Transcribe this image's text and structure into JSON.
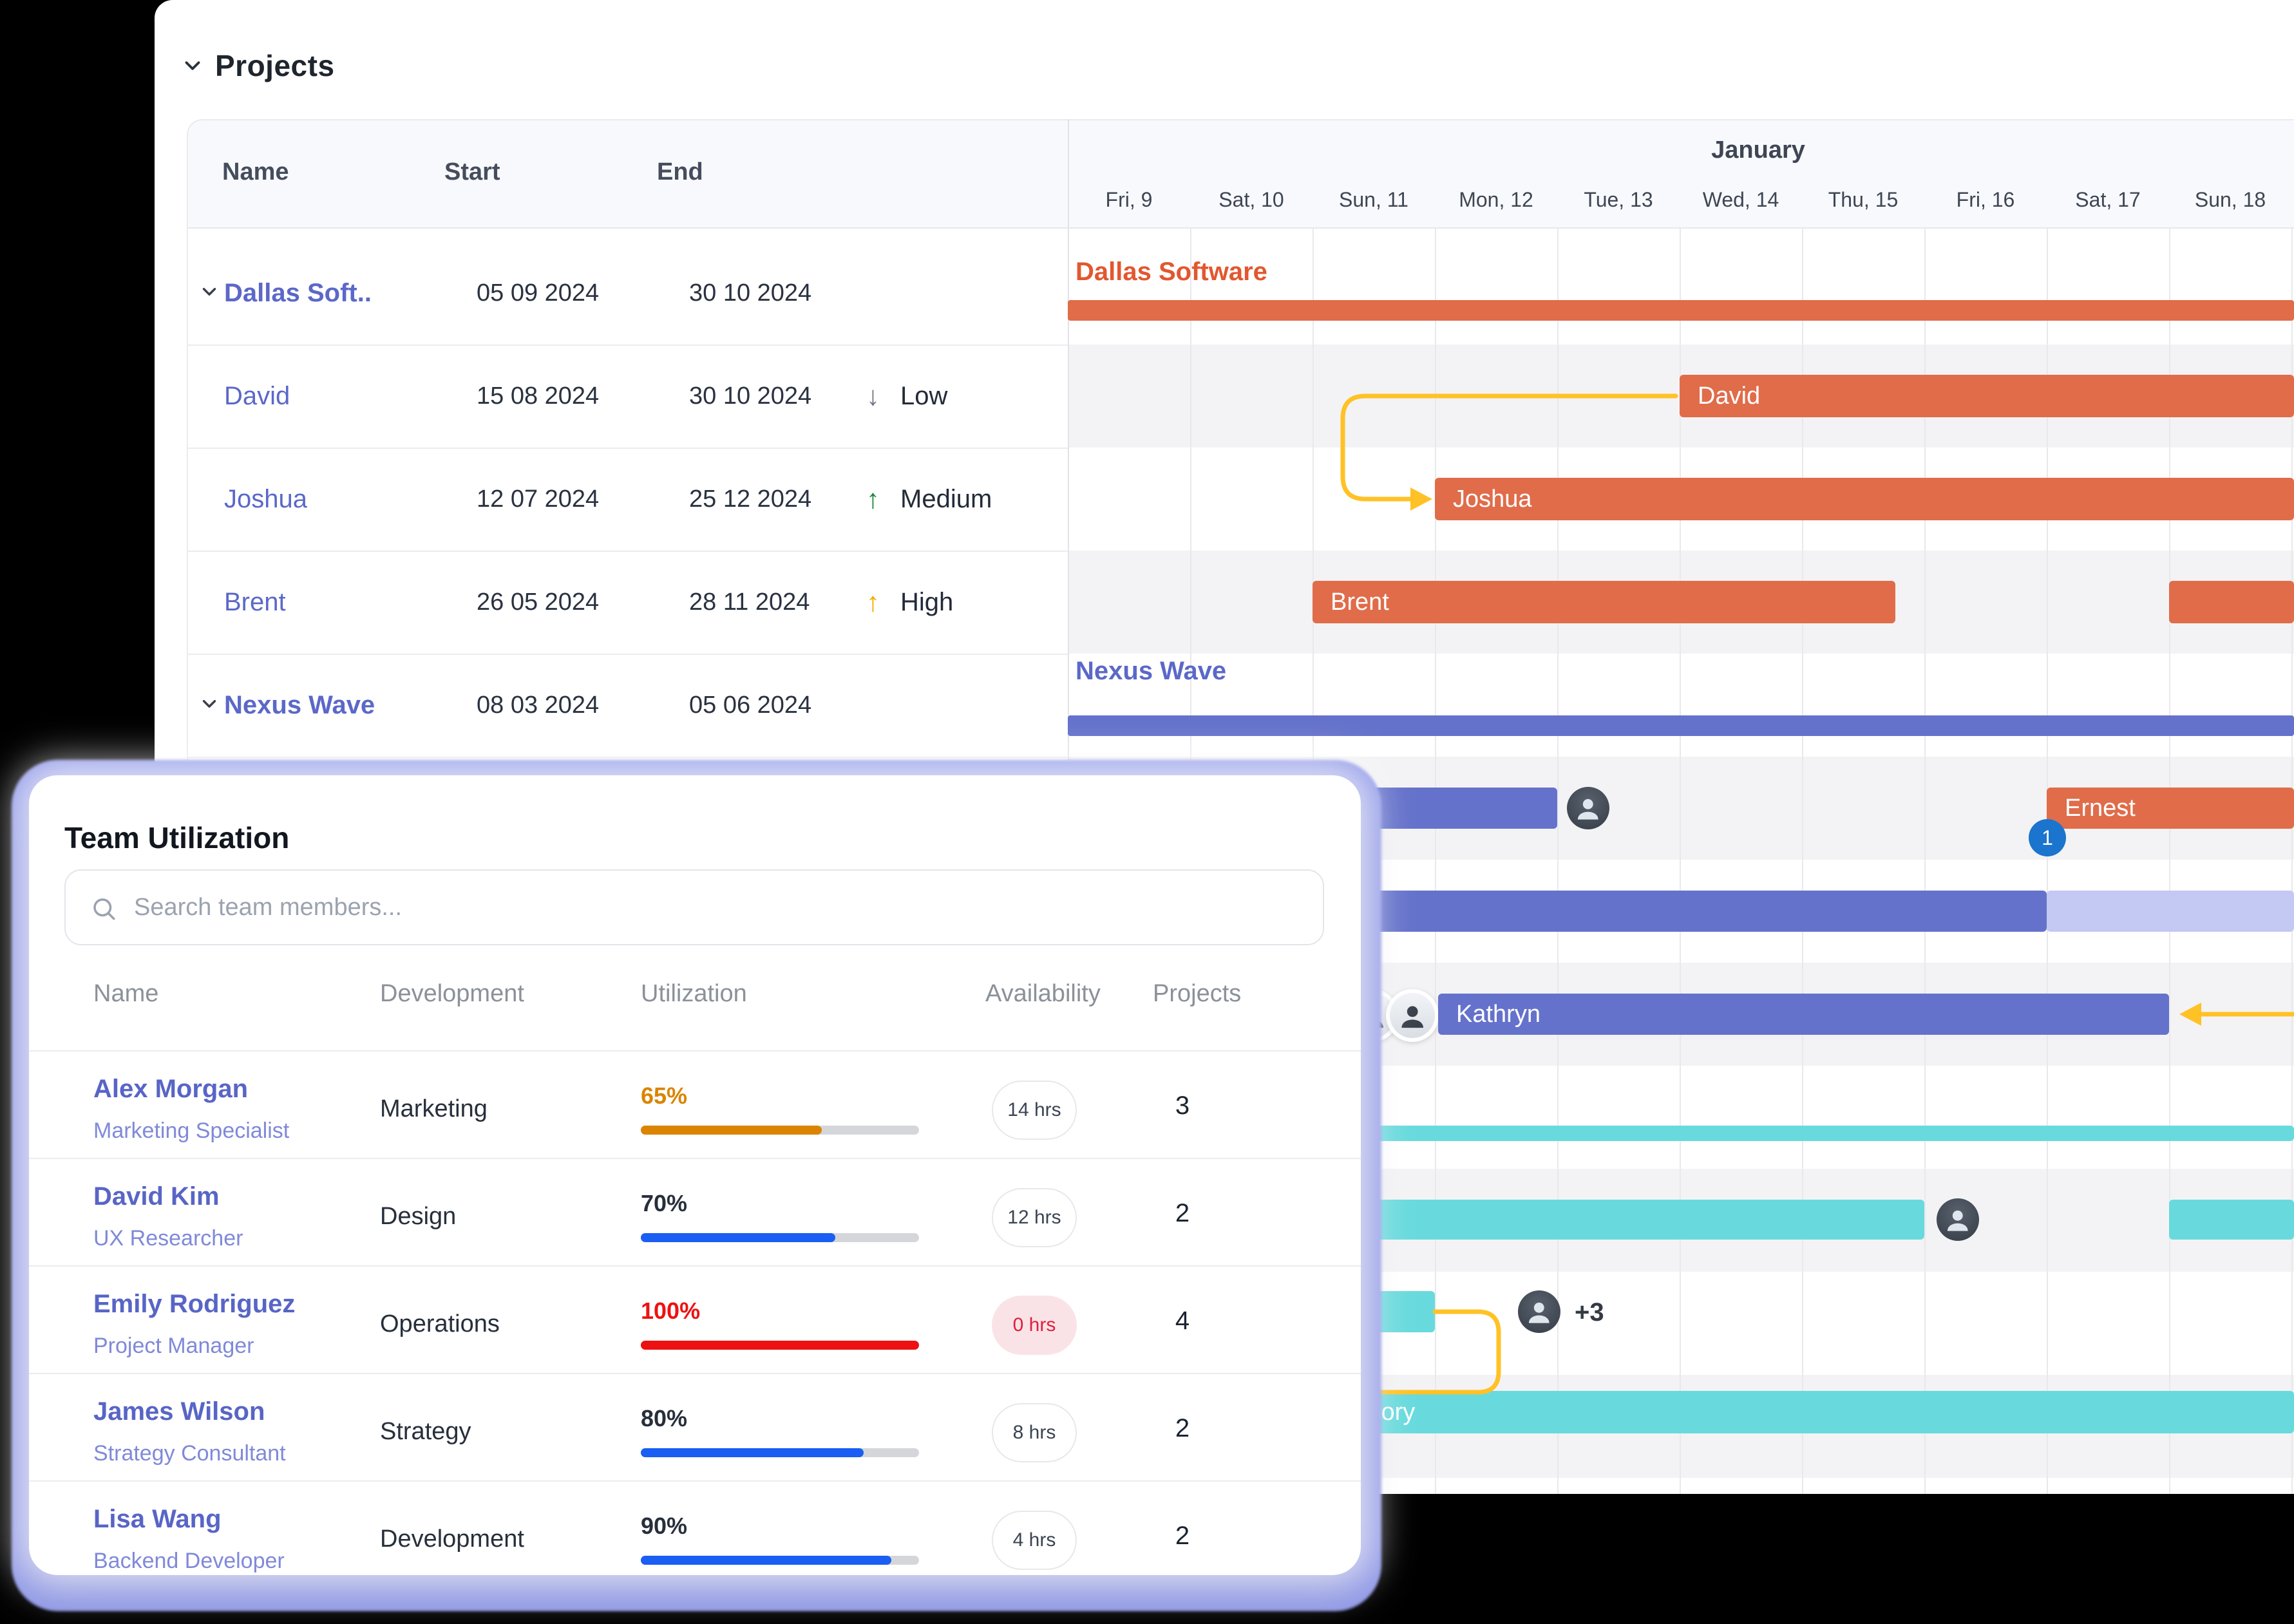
{
  "projects_panel": {
    "title": "Projects",
    "month_label": "January",
    "columns": {
      "name": "Name",
      "start": "Start",
      "end": "End"
    },
    "days": [
      "Fri, 9",
      "Sat, 10",
      "Sun, 11",
      "Mon, 12",
      "Tue, 13",
      "Wed, 14",
      "Thu, 15",
      "Fri, 16",
      "Sat, 17",
      "Sun, 18"
    ],
    "rows": [
      {
        "name": "Dallas Soft..",
        "start": "05 09 2024",
        "end": "30 10 2024",
        "priority": "",
        "priority_icon": "",
        "priority_color": "",
        "type": "project"
      },
      {
        "name": "David",
        "start": "15 08 2024",
        "end": "30 10 2024",
        "priority": "Low",
        "priority_icon": "↓",
        "priority_color": "#6e7781",
        "type": "task"
      },
      {
        "name": "Joshua",
        "start": "12 07 2024",
        "end": "25 12 2024",
        "priority": "Medium",
        "priority_icon": "↑",
        "priority_color": "#1a8739",
        "type": "task"
      },
      {
        "name": "Brent",
        "start": "26 05 2024",
        "end": "28 11 2024",
        "priority": "High",
        "priority_icon": "↑",
        "priority_color": "#f5a800",
        "type": "task"
      },
      {
        "name": "Nexus Wave",
        "start": "08 03 2024",
        "end": "05 06 2024",
        "priority": "",
        "priority_icon": "",
        "priority_color": "",
        "type": "project"
      }
    ],
    "bars": {
      "dallas_label": "Dallas Software",
      "david": "David",
      "joshua": "Joshua",
      "brent": "Brent",
      "nexus_label": "Nexus Wave",
      "ernest": "Ernest",
      "kathryn": "Kathryn",
      "gregory": "Gregory",
      "overflow_badge": "+3",
      "dependency_badge": "1"
    },
    "colors": {
      "orange_bar": "#e06c4a",
      "orange_label": "#e2572f",
      "purple_bar": "#6572cb",
      "purple_light_bar": "#c3c9f3",
      "purple_label": "#5b68c8",
      "teal_bar": "#68dadd",
      "connector_yellow": "#ffc226",
      "badge_blue": "#1b74ce"
    }
  },
  "team_panel": {
    "title": "Team Utilization",
    "search_placeholder": "Search team members...",
    "columns": [
      "Name",
      "Development",
      "Utilization",
      "Availability",
      "Projects"
    ],
    "rows": [
      {
        "name": "Alex Morgan",
        "role": "Marketing Specialist",
        "department": "Marketing",
        "utilization": "65%",
        "utilization_pct": 65,
        "bar_color": "#db8400",
        "utilization_label_color": "#db8400",
        "availability": "14 hrs",
        "availability_bg": "#ffffff",
        "availability_color": "#3a4452",
        "availability_border": "#e6e8ec",
        "projects": "3"
      },
      {
        "name": "David Kim",
        "role": "UX Researcher",
        "department": "Design",
        "utilization": "70%",
        "utilization_pct": 70,
        "bar_color": "#1a5ef3",
        "utilization_label_color": "#272f3b",
        "availability": "12 hrs",
        "availability_bg": "#ffffff",
        "availability_color": "#3a4452",
        "availability_border": "#e6e8ec",
        "projects": "2"
      },
      {
        "name": "Emily Rodriguez",
        "role": "Project Manager",
        "department": "Operations",
        "utilization": "100%",
        "utilization_pct": 100,
        "bar_color": "#ee1111",
        "utilization_label_color": "#ee1111",
        "availability": "0 hrs",
        "availability_bg": "#fae3e7",
        "availability_color": "#df1f3d",
        "availability_border": "#fae3e7",
        "projects": "4"
      },
      {
        "name": "James Wilson",
        "role": "Strategy Consultant",
        "department": "Strategy",
        "utilization": "80%",
        "utilization_pct": 80,
        "bar_color": "#1a5ef3",
        "utilization_label_color": "#272f3b",
        "availability": "8 hrs",
        "availability_bg": "#ffffff",
        "availability_color": "#3a4452",
        "availability_border": "#e6e8ec",
        "projects": "2"
      },
      {
        "name": "Lisa Wang",
        "role": "Backend Developer",
        "department": "Development",
        "utilization": "90%",
        "utilization_pct": 90,
        "bar_color": "#1a5ef3",
        "utilization_label_color": "#272f3b",
        "availability": "4 hrs",
        "availability_bg": "#ffffff",
        "availability_color": "#3a4452",
        "availability_border": "#e6e8ec",
        "projects": "2"
      }
    ]
  }
}
